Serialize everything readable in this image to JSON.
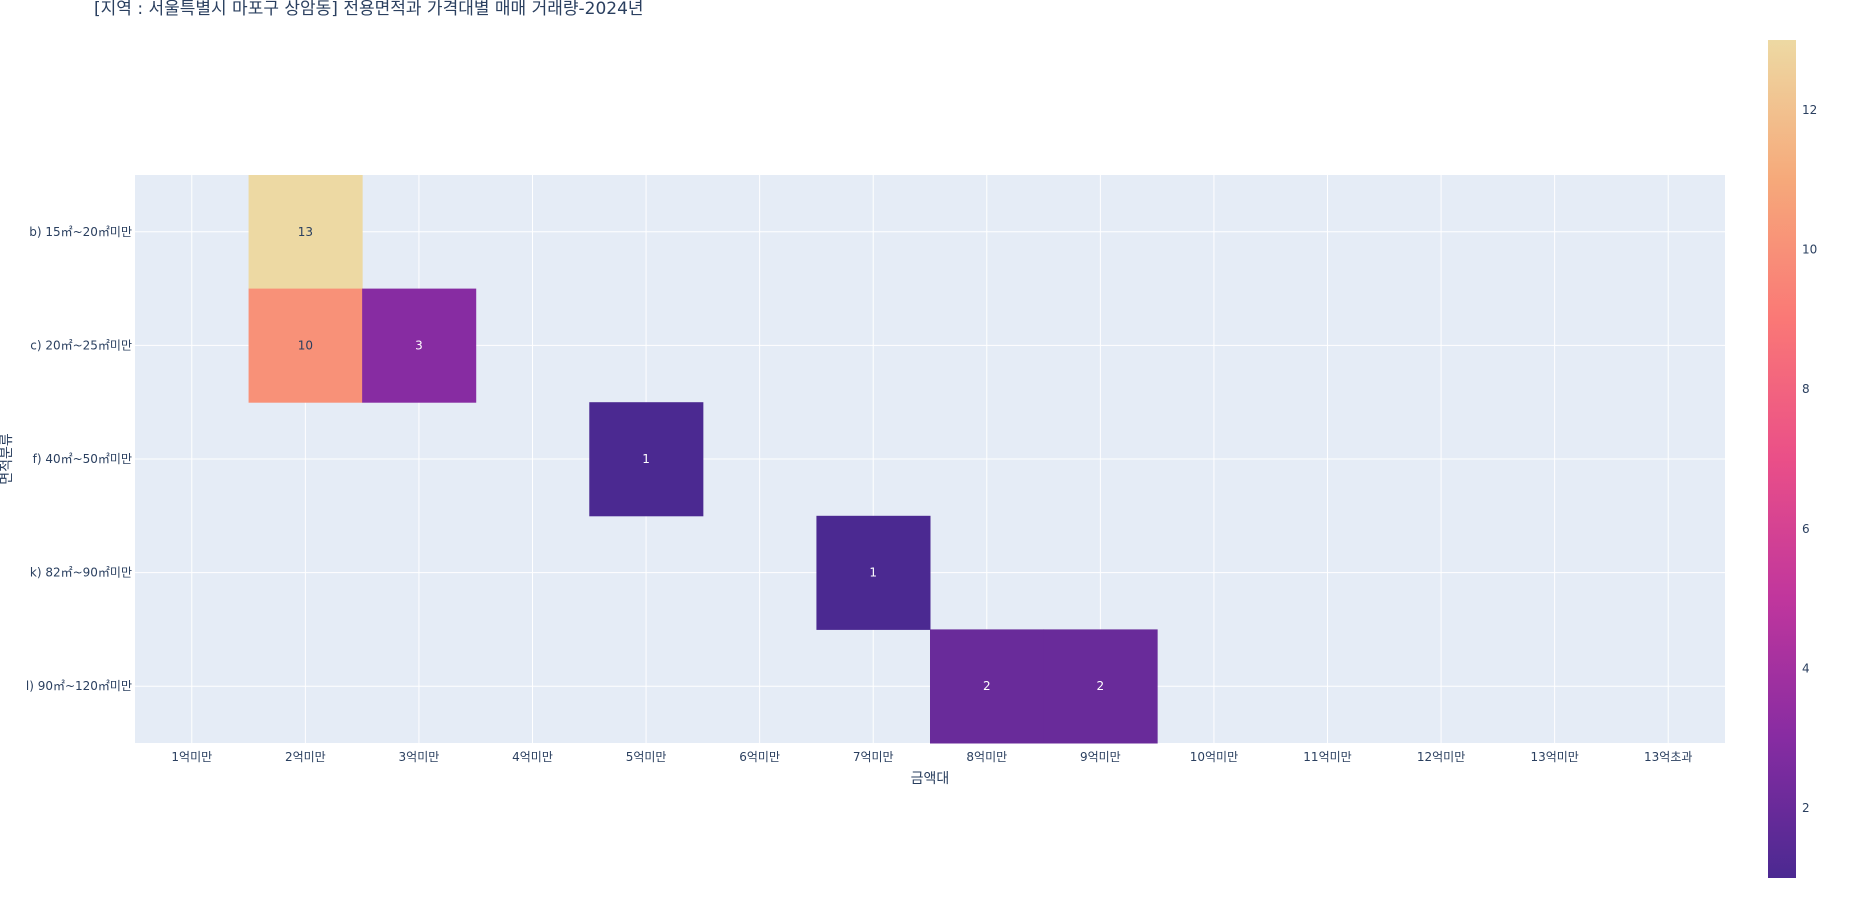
{
  "chart_data": {
    "type": "heatmap",
    "title": "[지역 : 서울특별시 마포구 상암동] 전용면적과 가격대별 매매 거래량-2024년",
    "xlabel": "금액대",
    "ylabel": "면적분류",
    "x_categories": [
      "1억미만",
      "2억미만",
      "3억미만",
      "4억미만",
      "5억미만",
      "6억미만",
      "7억미만",
      "8억미만",
      "9억미만",
      "10억미만",
      "11억미만",
      "12억미만",
      "13억미만",
      "13억초과"
    ],
    "y_categories": [
      "b) 15㎡~20㎡미만",
      "c) 20㎡~25㎡미만",
      "f) 40㎡~50㎡미만",
      "k) 82㎡~90㎡미만",
      "l) 90㎡~120㎡미만"
    ],
    "cells": [
      {
        "x": "2억미만",
        "y": "b) 15㎡~20㎡미만",
        "value": 13
      },
      {
        "x": "2억미만",
        "y": "c) 20㎡~25㎡미만",
        "value": 10
      },
      {
        "x": "3억미만",
        "y": "c) 20㎡~25㎡미만",
        "value": 3
      },
      {
        "x": "5억미만",
        "y": "f) 40㎡~50㎡미만",
        "value": 1
      },
      {
        "x": "7억미만",
        "y": "k) 82㎡~90㎡미만",
        "value": 1
      },
      {
        "x": "8억미만",
        "y": "l) 90㎡~120㎡미만",
        "value": 2
      },
      {
        "x": "9억미만",
        "y": "l) 90㎡~120㎡미만",
        "value": 2
      }
    ],
    "colorscale": {
      "min": 1,
      "max": 13,
      "ticks": [
        2,
        4,
        6,
        8,
        10,
        12
      ],
      "stops": [
        "#4b2991",
        "#872ca2",
        "#c0369d",
        "#ea4f88",
        "#fa7876",
        "#f6a97a",
        "#edd9a3"
      ]
    },
    "grid": true,
    "legend": "colorbar-right",
    "colors": {
      "plot_background": "#e5ecf6",
      "gridline": "#ffffff",
      "text": "#2a3f5f"
    }
  }
}
